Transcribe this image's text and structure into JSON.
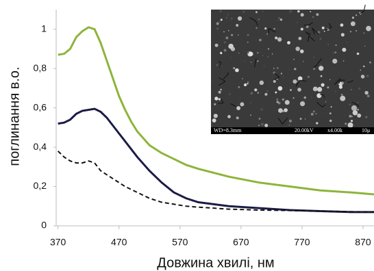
{
  "chart_data": {
    "type": "line",
    "y_label": "поглинання в.о.",
    "x_label": "Довжина хвилі, нм",
    "x": [
      370,
      380,
      390,
      400,
      410,
      420,
      430,
      440,
      450,
      460,
      470,
      480,
      490,
      500,
      520,
      540,
      560,
      580,
      600,
      650,
      700,
      750,
      800,
      850,
      888
    ],
    "series": [
      {
        "color": "#8db43a",
        "dashed": false,
        "values": [
          0.87,
          0.875,
          0.9,
          0.96,
          0.99,
          1.01,
          1.0,
          0.93,
          0.84,
          0.75,
          0.66,
          0.59,
          0.53,
          0.48,
          0.41,
          0.37,
          0.34,
          0.31,
          0.29,
          0.25,
          0.22,
          0.2,
          0.18,
          0.17,
          0.16
        ]
      },
      {
        "color": "#1b1b45",
        "dashed": false,
        "values": [
          0.52,
          0.525,
          0.54,
          0.57,
          0.585,
          0.59,
          0.595,
          0.58,
          0.55,
          0.51,
          0.47,
          0.43,
          0.39,
          0.35,
          0.28,
          0.22,
          0.17,
          0.14,
          0.12,
          0.1,
          0.09,
          0.08,
          0.075,
          0.07,
          0.07
        ]
      },
      {
        "color": "#111111",
        "dashed": true,
        "values": [
          0.38,
          0.35,
          0.33,
          0.32,
          0.32,
          0.33,
          0.32,
          0.28,
          0.26,
          0.24,
          0.22,
          0.2,
          0.185,
          0.17,
          0.14,
          0.12,
          0.11,
          0.1,
          0.095,
          0.085,
          0.08,
          0.078,
          0.075,
          0.072,
          0.07
        ]
      }
    ],
    "xlim": [
      367,
      888
    ],
    "xticks": [
      370,
      470,
      570,
      670,
      770,
      870
    ],
    "ylim": [
      0,
      1.1
    ],
    "yticks": [
      0,
      {
        "value": 0.2,
        "label": "0,2"
      },
      {
        "value": 0.4,
        "label": "0,4"
      },
      {
        "value": 0.6,
        "label": "0,6"
      },
      {
        "value": 0.8,
        "label": "0,8"
      },
      1
    ],
    "inset_texts": [
      "WD=8.3mm",
      "20.00kV",
      "x4.00k",
      "10μ"
    ]
  }
}
